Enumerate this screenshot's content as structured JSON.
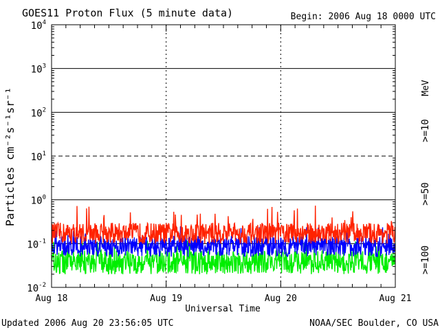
{
  "header": {
    "title": "GOES11 Proton Flux (5 minute data)",
    "begin": "Begin: 2006 Aug 18 0000 UTC"
  },
  "footer": {
    "updated": "Updated 2006 Aug 20 23:56:05 UTC",
    "source": "NOAA/SEC Boulder, CO USA"
  },
  "chart_data": {
    "type": "line",
    "title": "GOES11 Proton Flux (5 minute data)",
    "xlabel": "Universal Time",
    "ylabel": "Particles cm⁻²s⁻¹sr⁻¹",
    "yscale": "log",
    "ylim": [
      0.01,
      10000
    ],
    "y_ticks": [
      {
        "base": "10",
        "exp": "-2",
        "value": 0.01
      },
      {
        "base": "10",
        "exp": "-1",
        "value": 0.1
      },
      {
        "base": "10",
        "exp": "0",
        "value": 1
      },
      {
        "base": "10",
        "exp": "1",
        "value": 10
      },
      {
        "base": "10",
        "exp": "2",
        "value": 100
      },
      {
        "base": "10",
        "exp": "3",
        "value": 1000
      },
      {
        "base": "10",
        "exp": "4",
        "value": 10000
      }
    ],
    "x_ticks": [
      "Aug 18",
      "Aug 19",
      "Aug 20",
      "Aug 21"
    ],
    "xlim_days": [
      0,
      3
    ],
    "threshold_lines": [
      {
        "value": 10,
        "style": "dashed"
      },
      {
        "value": 1,
        "style": "solid"
      },
      {
        "value": 0.1,
        "style": "solid"
      }
    ],
    "unit_label": "MeV",
    "series": [
      {
        "name": ">=10",
        "color": "#ff2200",
        "typical_range": [
          0.1,
          0.3
        ],
        "peak": 0.8
      },
      {
        "name": ">=50",
        "color": "#0000ff",
        "typical_range": [
          0.05,
          0.15
        ],
        "peak": 0.25
      },
      {
        "name": ">=100",
        "color": "#00ee00",
        "typical_range": [
          0.02,
          0.07
        ],
        "peak": 0.12
      }
    ]
  }
}
